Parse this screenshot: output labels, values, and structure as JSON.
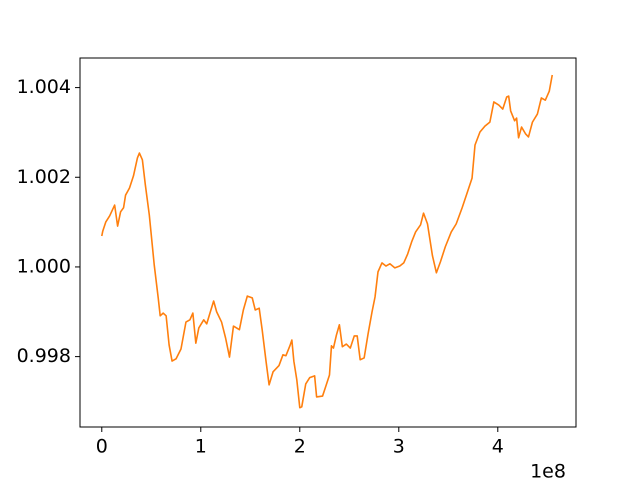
{
  "chart_data": {
    "type": "line",
    "x_offset_label": "1e8",
    "x": [
      0,
      1000000.0,
      4000000.0,
      8000000.0,
      13000000.0,
      16000000.0,
      19000000.0,
      22000000.0,
      24000000.0,
      28000000.0,
      32000000.0,
      36000000.0,
      38000000.0,
      41000000.0,
      44000000.0,
      48000000.0,
      53000000.0,
      57000000.0,
      59000000.0,
      62000000.0,
      65000000.0,
      68000000.0,
      71000000.0,
      75000000.0,
      80000000.0,
      85000000.0,
      89000000.0,
      92000000.0,
      95000000.0,
      98000000.0,
      103000000.0,
      106000000.0,
      109000000.0,
      113000000.0,
      116000000.0,
      121000000.0,
      125000000.0,
      129000000.0,
      133000000.0,
      139000000.0,
      143000000.0,
      147000000.0,
      152000000.0,
      155000000.0,
      159000000.0,
      162000000.0,
      166000000.0,
      169000000.0,
      173000000.0,
      179000000.0,
      183000000.0,
      186000000.0,
      190000000.0,
      192000000.0,
      194000000.0,
      197000000.0,
      200000000.0,
      202000000.0,
      206000000.0,
      210000000.0,
      215000000.0,
      217000000.0,
      223000000.0,
      226000000.0,
      230000000.0,
      232000000.0,
      234000000.0,
      237000000.0,
      240000000.0,
      243000000.0,
      247000000.0,
      251000000.0,
      255000000.0,
      258000000.0,
      261000000.0,
      265000000.0,
      269000000.0,
      273000000.0,
      276000000.0,
      279000000.0,
      283000000.0,
      287000000.0,
      291000000.0,
      296000000.0,
      301000000.0,
      305000000.0,
      309000000.0,
      313000000.0,
      317000000.0,
      322000000.0,
      325000000.0,
      329000000.0,
      334000000.0,
      338000000.0,
      342000000.0,
      347000000.0,
      353000000.0,
      358000000.0,
      364000000.0,
      369000000.0,
      374000000.0,
      377000000.0,
      382000000.0,
      387000000.0,
      392000000.0,
      396000000.0,
      401000000.0,
      405000000.0,
      409000000.0,
      411000000.0,
      413000000.0,
      417000000.0,
      419000000.0,
      421000000.0,
      424000000.0,
      428000000.0,
      431000000.0,
      435000000.0,
      440000000.0,
      444000000.0,
      448000000.0,
      452000000.0,
      455000000.0
    ],
    "series": [
      {
        "color": "#ff7f0e",
        "values": [
          1.00069,
          1.0008,
          1.001,
          1.00114,
          1.00138,
          1.00091,
          1.00123,
          1.00132,
          1.0016,
          1.00176,
          1.00203,
          1.00243,
          1.00254,
          1.00239,
          1.00183,
          1.00116,
          1.00004,
          0.99931,
          0.99891,
          0.99897,
          0.99891,
          0.99826,
          0.9979,
          0.99795,
          0.99817,
          0.99877,
          0.99882,
          0.99897,
          0.9983,
          0.99864,
          0.99882,
          0.99873,
          0.99895,
          0.99924,
          0.999,
          0.99877,
          0.99842,
          0.99799,
          0.99868,
          0.9986,
          0.99904,
          0.99935,
          0.99931,
          0.99904,
          0.99908,
          0.9986,
          0.99788,
          0.99737,
          0.99766,
          0.9978,
          0.99804,
          0.99802,
          0.99824,
          0.99837,
          0.9979,
          0.99748,
          0.99686,
          0.99688,
          0.99739,
          0.99753,
          0.99757,
          0.9971,
          0.99712,
          0.99732,
          0.99759,
          0.99824,
          0.99819,
          0.99848,
          0.99871,
          0.99822,
          0.99828,
          0.99819,
          0.99846,
          0.99846,
          0.99793,
          0.99797,
          0.99851,
          0.999,
          0.99933,
          0.99989,
          1.00009,
          1.00002,
          1.00007,
          0.99998,
          1.00002,
          1.00009,
          1.00029,
          1.00056,
          1.00078,
          1.00094,
          1.0012,
          1.00096,
          1.00025,
          0.99987,
          1.00011,
          1.00045,
          1.00078,
          1.00096,
          1.00132,
          1.00165,
          1.00198,
          1.00272,
          1.00301,
          1.00314,
          1.00323,
          1.00368,
          1.00361,
          1.00352,
          1.00379,
          1.00381,
          1.00348,
          1.00326,
          1.00332,
          1.00288,
          1.00312,
          1.00297,
          1.0029,
          1.00323,
          1.00341,
          1.00377,
          1.00372,
          1.00392,
          1.00428
        ]
      }
    ],
    "xlim": [
      -22000000.0,
      479000000.0
    ],
    "xticks": [
      {
        "value": 0,
        "label": "0"
      },
      {
        "value": 100000000.0,
        "label": "1"
      },
      {
        "value": 200000000.0,
        "label": "2"
      },
      {
        "value": 300000000.0,
        "label": "3"
      },
      {
        "value": 400000000.0,
        "label": "4"
      }
    ],
    "ylim": [
      0.99643,
      1.00466
    ],
    "yticks": [
      0.998,
      {
        "value": 1,
        "label": "1.000"
      },
      1.002,
      1.004
    ]
  }
}
